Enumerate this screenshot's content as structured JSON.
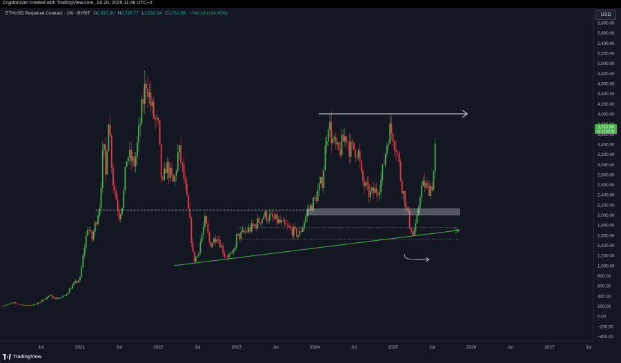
{
  "header": {
    "caption": "Cryptorover created with TradingView.com, Jul 20, 2025 11:46 UTC+2"
  },
  "legend": {
    "title": "ETHUSD Perpetual Contract · 1W · BYBIT",
    "open_key": "O",
    "open": "2,972.80",
    "high_key": "H",
    "high": "3,728.77",
    "low_key": "L",
    "low": "2,932.64",
    "close_key": "C",
    "close": "3,712.99",
    "change": "+740.19 (+24.90%)"
  },
  "currency_button": "USD",
  "price_tag": {
    "price": "3,712.99",
    "countdown": "1d 12:13:31"
  },
  "footer": {
    "brand": "TradingView"
  },
  "colors": {
    "up": "#4caf50",
    "down": "#f23645",
    "background": "#131722",
    "trendline": "#4caf50"
  },
  "chart_data": {
    "type": "candlestick",
    "symbol": "ETHUSD",
    "interval": "1W",
    "ylim": [
      -400,
      6000
    ],
    "y_ticks": [
      -400,
      -200,
      0,
      200,
      400,
      600,
      800,
      1000,
      1200,
      1400,
      1600,
      1800,
      2000,
      2200,
      2400,
      2600,
      2800,
      3000,
      3200,
      3400,
      3600,
      3800,
      4000,
      4200,
      4400,
      4600,
      4800,
      5000,
      5200,
      5400,
      5600,
      5800
    ],
    "y_tick_labels": [
      "−400.00",
      "−200.00",
      "0.00",
      "200.00",
      "400.00",
      "600.00",
      "800.00",
      "1,000.00",
      "1,200.00",
      "1,400.00",
      "1,600.00",
      "1,800.00",
      "2,000.00",
      "2,200.00",
      "2,400.00",
      "2,600.00",
      "2,800.00",
      "3,000.00",
      "3,200.00",
      "3,400.00",
      "3,600.00",
      "3,800.00",
      "4,000.00",
      "4,200.00",
      "4,400.00",
      "4,600.00",
      "4,800.00",
      "5,000.00",
      "5,200.00",
      "5,400.00",
      "5,600.00",
      "5,800.00"
    ],
    "x_ticks": [
      {
        "t": 2020.5,
        "label": "Jul"
      },
      {
        "t": 2021.0,
        "label": "2021"
      },
      {
        "t": 2021.5,
        "label": "Jul"
      },
      {
        "t": 2022.0,
        "label": "2022"
      },
      {
        "t": 2022.5,
        "label": "Jul"
      },
      {
        "t": 2023.0,
        "label": "2023"
      },
      {
        "t": 2023.5,
        "label": "Jul"
      },
      {
        "t": 2024.0,
        "label": "2024"
      },
      {
        "t": 2024.5,
        "label": "Jul"
      },
      {
        "t": 2025.0,
        "label": "2025"
      },
      {
        "t": 2025.5,
        "label": "Jul"
      },
      {
        "t": 2026.0,
        "label": "2026"
      },
      {
        "t": 2026.5,
        "label": "Jul"
      },
      {
        "t": 2027.0,
        "label": "2027"
      },
      {
        "t": 2027.5,
        "label": "Jul"
      }
    ],
    "price_path": [
      [
        2020.0,
        200
      ],
      [
        2020.15,
        260
      ],
      [
        2020.3,
        210
      ],
      [
        2020.45,
        240
      ],
      [
        2020.6,
        400
      ],
      [
        2020.7,
        350
      ],
      [
        2020.8,
        390
      ],
      [
        2020.9,
        600
      ],
      [
        2021.0,
        740
      ],
      [
        2021.05,
        1300
      ],
      [
        2021.1,
        1800
      ],
      [
        2021.15,
        1500
      ],
      [
        2021.25,
        2200
      ],
      [
        2021.3,
        3400
      ],
      [
        2021.33,
        2700
      ],
      [
        2021.36,
        4100
      ],
      [
        2021.42,
        2700
      ],
      [
        2021.5,
        2000
      ],
      [
        2021.55,
        2300
      ],
      [
        2021.6,
        3200
      ],
      [
        2021.7,
        3000
      ],
      [
        2021.8,
        4200
      ],
      [
        2021.85,
        4700
      ],
      [
        2021.9,
        4200
      ],
      [
        2021.95,
        3900
      ],
      [
        2022.0,
        3700
      ],
      [
        2022.05,
        2500
      ],
      [
        2022.1,
        3000
      ],
      [
        2022.2,
        2600
      ],
      [
        2022.26,
        3300
      ],
      [
        2022.32,
        2800
      ],
      [
        2022.4,
        1900
      ],
      [
        2022.45,
        1100
      ],
      [
        2022.5,
        1200
      ],
      [
        2022.6,
        1900
      ],
      [
        2022.66,
        1400
      ],
      [
        2022.75,
        1600
      ],
      [
        2022.85,
        1200
      ],
      [
        2022.95,
        1200
      ],
      [
        2023.0,
        1550
      ],
      [
        2023.05,
        1600
      ],
      [
        2023.1,
        1650
      ],
      [
        2023.2,
        1750
      ],
      [
        2023.3,
        1900
      ],
      [
        2023.35,
        2000
      ],
      [
        2023.5,
        1900
      ],
      [
        2023.7,
        1700
      ],
      [
        2023.8,
        1600
      ],
      [
        2023.85,
        1800
      ],
      [
        2023.9,
        2050
      ],
      [
        2024.0,
        2300
      ],
      [
        2024.1,
        2700
      ],
      [
        2024.17,
        3900
      ],
      [
        2024.22,
        3500
      ],
      [
        2024.3,
        3200
      ],
      [
        2024.4,
        3600
      ],
      [
        2024.45,
        3300
      ],
      [
        2024.55,
        3300
      ],
      [
        2024.6,
        2700
      ],
      [
        2024.7,
        2400
      ],
      [
        2024.8,
        2500
      ],
      [
        2024.85,
        2700
      ],
      [
        2024.9,
        3200
      ],
      [
        2024.95,
        3700
      ],
      [
        2025.0,
        3600
      ],
      [
        2025.05,
        3300
      ],
      [
        2025.1,
        2700
      ],
      [
        2025.15,
        2300
      ],
      [
        2025.2,
        1900
      ],
      [
        2025.25,
        1600
      ],
      [
        2025.3,
        1800
      ],
      [
        2025.35,
        2500
      ],
      [
        2025.4,
        2600
      ],
      [
        2025.45,
        2500
      ],
      [
        2025.5,
        2600
      ],
      [
        2025.53,
        3000
      ],
      [
        2025.55,
        3713
      ]
    ],
    "annotations": [
      {
        "type": "horizontal-arrow",
        "price": 4000,
        "from": 2024.05,
        "to": 2025.95
      },
      {
        "type": "dashed-line",
        "price": 2100,
        "from": 2021.2,
        "to": 2023.95
      },
      {
        "type": "zone",
        "from_price": 2000,
        "to_price": 2120,
        "from": 2023.9,
        "to": 2025.85
      },
      {
        "type": "dotted-line",
        "price": 1750,
        "from": 2023.0,
        "to": 2025.85
      },
      {
        "type": "dotted-line",
        "price": 1520,
        "from": 2023.05,
        "to": 2025.85
      },
      {
        "type": "trendline",
        "from": [
          2022.2,
          1000
        ],
        "to": [
          2025.85,
          1700
        ]
      }
    ]
  }
}
